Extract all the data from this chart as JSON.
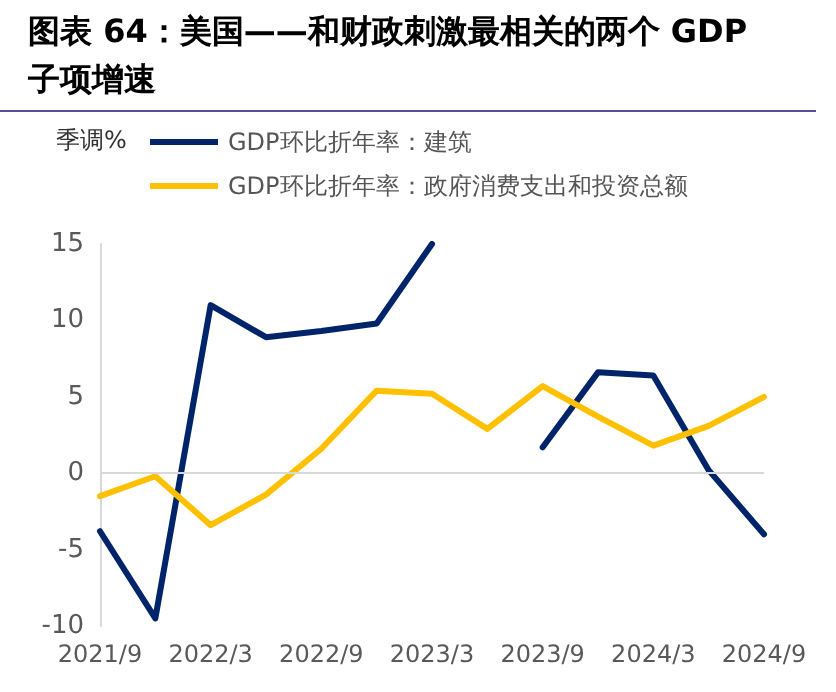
{
  "chart_data": {
    "type": "line",
    "title": "图表 64：美国——和财政刺激最相关的两个 GDP 子项增速",
    "ylabel": "季调%",
    "categories": [
      "2021/9",
      null,
      "2022/3",
      null,
      "2022/9",
      null,
      "2023/3",
      null,
      "2023/9",
      null,
      "2024/3",
      null,
      "2024/9"
    ],
    "series": [
      {
        "name": "GDP环比折年率：建筑",
        "color": "#002469",
        "values": [
          -3.8,
          -9.5,
          11.0,
          8.9,
          9.3,
          9.8,
          15,
          null,
          1.7,
          6.6,
          6.4,
          0.2,
          -4.0
        ]
      },
      {
        "name": "GDP环比折年率：政府消费支出和投资总额",
        "color": "#ffc000",
        "values": [
          -1.5,
          -0.2,
          -3.4,
          -1.4,
          1.6,
          5.4,
          5.2,
          2.9,
          5.7,
          3.7,
          1.8,
          3.1,
          5.0
        ]
      }
    ],
    "ylim": [
      -10,
      15
    ],
    "yticks": [
      -10,
      -5,
      0,
      5,
      10,
      15
    ],
    "grid": false,
    "ref_lines": [
      {
        "axis": "y",
        "value": 0,
        "color": "#d9d9d9"
      }
    ],
    "legend": "top",
    "marker": "none",
    "line_style": "solid"
  }
}
